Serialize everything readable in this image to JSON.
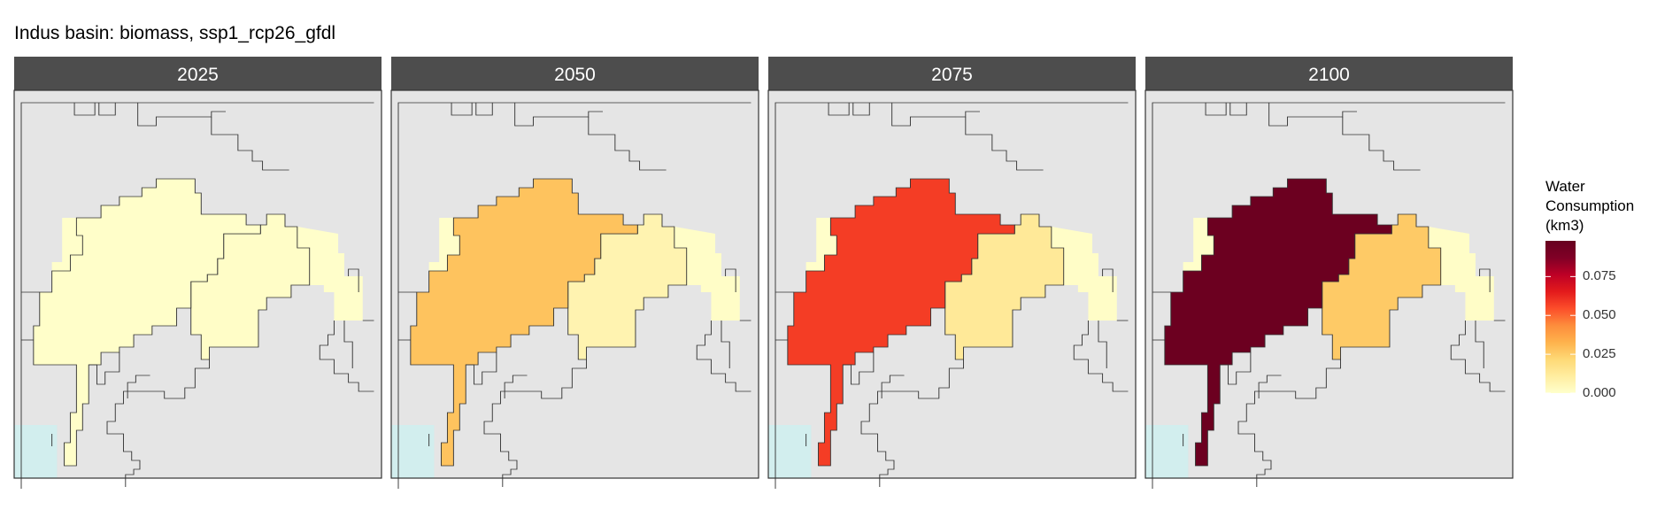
{
  "title": "Indus basin: biomass, ssp1_rcp26_gfdl",
  "panels": [
    {
      "label": "2025",
      "values": {
        "west": 0.0005,
        "central": 0.0008,
        "east": 0.0012,
        "northeast": 0.0005
      }
    },
    {
      "label": "2050",
      "values": {
        "west": 0.0005,
        "central": 0.028,
        "east": 0.007,
        "northeast": 0.0012
      }
    },
    {
      "label": "2075",
      "values": {
        "west": 0.0005,
        "central": 0.058,
        "east": 0.013,
        "northeast": 0.0012
      }
    },
    {
      "label": "2100",
      "values": {
        "west": 0.0005,
        "central": 0.096,
        "east": 0.026,
        "northeast": 0.0012
      }
    }
  ],
  "legend": {
    "title_lines": [
      "Water",
      "Consumption",
      "(km3)"
    ],
    "min": 0,
    "max": 0.098,
    "ticks": [
      "0.000",
      "0.025",
      "0.050",
      "0.075"
    ],
    "tick_values": [
      0,
      0.025,
      0.05,
      0.075
    ],
    "colors": [
      "#ffffcc",
      "#ffeda0",
      "#fed976",
      "#feb24c",
      "#fd8d3c",
      "#fc4e2a",
      "#e31a1c",
      "#bd0026",
      "#800026",
      "#67001f"
    ]
  },
  "colors": {
    "strip": "#4d4d4d",
    "strip_text": "#ffffff",
    "background": "#e5e5e5",
    "sea": "#d2eeee",
    "border": "#333333"
  }
}
